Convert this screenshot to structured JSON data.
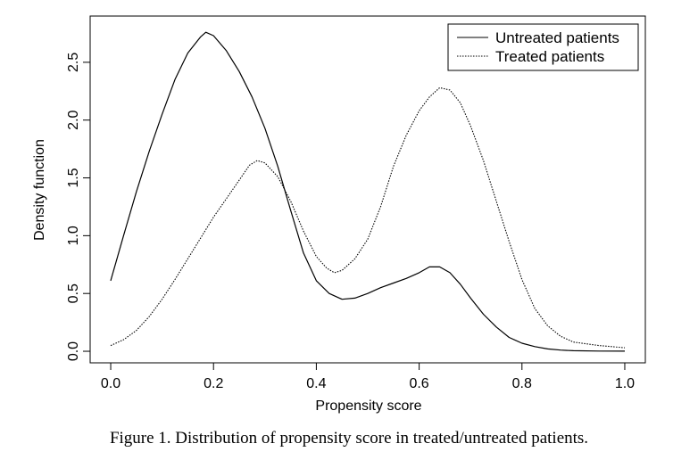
{
  "caption": "Figure 1. Distribution of propensity score in treated/untreated patients.",
  "chart_data": {
    "type": "line",
    "title": "",
    "xlabel": "Propensity score",
    "ylabel": "Density function",
    "xlim": [
      -0.04,
      1.04
    ],
    "ylim": [
      -0.1,
      2.9
    ],
    "xticks": [
      0.0,
      0.2,
      0.4,
      0.6,
      0.8,
      1.0
    ],
    "xtick_labels": [
      "0.0",
      "0.2",
      "0.4",
      "0.6",
      "0.8",
      "1.0"
    ],
    "yticks": [
      0.0,
      0.5,
      1.0,
      1.5,
      2.0,
      2.5
    ],
    "ytick_labels": [
      "0.0",
      "0.5",
      "1.0",
      "1.5",
      "2.0",
      "2.5"
    ],
    "grid": false,
    "legend_position": "top-right",
    "series": [
      {
        "name": "Untreated patients",
        "line_style": "solid",
        "color": "#000000",
        "x": [
          0.0,
          0.025,
          0.05,
          0.075,
          0.1,
          0.125,
          0.15,
          0.175,
          0.185,
          0.2,
          0.225,
          0.25,
          0.275,
          0.3,
          0.325,
          0.35,
          0.375,
          0.4,
          0.425,
          0.45,
          0.475,
          0.5,
          0.525,
          0.55,
          0.575,
          0.6,
          0.62,
          0.64,
          0.66,
          0.68,
          0.7,
          0.725,
          0.75,
          0.775,
          0.8,
          0.825,
          0.85,
          0.875,
          0.9,
          0.95,
          1.0
        ],
        "y": [
          0.61,
          1.0,
          1.38,
          1.73,
          2.05,
          2.35,
          2.58,
          2.72,
          2.76,
          2.73,
          2.6,
          2.42,
          2.2,
          1.93,
          1.6,
          1.22,
          0.85,
          0.61,
          0.5,
          0.45,
          0.46,
          0.5,
          0.55,
          0.59,
          0.63,
          0.68,
          0.73,
          0.73,
          0.68,
          0.58,
          0.46,
          0.32,
          0.21,
          0.12,
          0.07,
          0.04,
          0.02,
          0.01,
          0.005,
          0.002,
          0.001
        ]
      },
      {
        "name": "Treated patients",
        "line_style": "dotted",
        "color": "#000000",
        "x": [
          0.0,
          0.025,
          0.05,
          0.075,
          0.1,
          0.125,
          0.15,
          0.175,
          0.2,
          0.225,
          0.25,
          0.27,
          0.285,
          0.3,
          0.325,
          0.35,
          0.375,
          0.4,
          0.42,
          0.435,
          0.45,
          0.475,
          0.5,
          0.525,
          0.55,
          0.575,
          0.6,
          0.62,
          0.64,
          0.66,
          0.68,
          0.7,
          0.725,
          0.75,
          0.775,
          0.8,
          0.825,
          0.85,
          0.875,
          0.9,
          0.95,
          1.0
        ],
        "y": [
          0.05,
          0.1,
          0.18,
          0.3,
          0.45,
          0.62,
          0.8,
          0.98,
          1.16,
          1.32,
          1.48,
          1.61,
          1.65,
          1.63,
          1.51,
          1.3,
          1.04,
          0.82,
          0.72,
          0.68,
          0.7,
          0.8,
          0.97,
          1.25,
          1.6,
          1.87,
          2.08,
          2.2,
          2.28,
          2.26,
          2.15,
          1.95,
          1.65,
          1.3,
          0.95,
          0.62,
          0.37,
          0.22,
          0.13,
          0.08,
          0.05,
          0.03
        ]
      }
    ]
  }
}
